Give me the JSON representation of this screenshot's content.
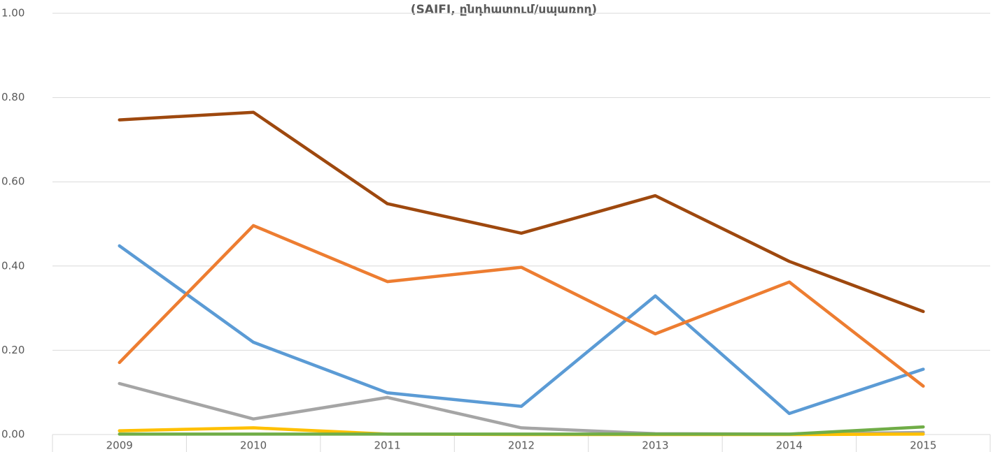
{
  "chart_data": {
    "type": "line",
    "title": "(SAIFI, ընդհատում/սպառող)",
    "categories": [
      "2009",
      "2010",
      "2011",
      "2012",
      "2013",
      "2014",
      "2015"
    ],
    "series": [
      {
        "color": "#5b9bd5",
        "values": [
          0.448,
          0.219,
          0.099,
          0.067,
          0.329,
          0.05,
          0.155
        ]
      },
      {
        "color": "#ed7d31",
        "values": [
          0.171,
          0.496,
          0.363,
          0.397,
          0.239,
          0.362,
          0.115
        ]
      },
      {
        "color": "#a5a5a5",
        "values": [
          0.121,
          0.037,
          0.088,
          0.016,
          0.002,
          0.001,
          0.005
        ]
      },
      {
        "color": "#ffc000",
        "values": [
          0.009,
          0.016,
          0.001,
          0.0,
          0.0,
          0.0,
          0.001
        ]
      },
      {
        "color": "#9e480e",
        "values": [
          0.747,
          0.765,
          0.548,
          0.478,
          0.567,
          0.411,
          0.292
        ]
      },
      {
        "color": "#70ad47",
        "values": [
          0.001,
          0.001,
          0.001,
          0.001,
          0.001,
          0.001,
          0.018
        ]
      }
    ],
    "ylim": [
      0,
      1
    ],
    "yticks": [
      {
        "value": 0,
        "label": "0.00"
      },
      {
        "value": 0.2,
        "label": "0.20"
      },
      {
        "value": 0.4,
        "label": "0.40"
      },
      {
        "value": 0.6,
        "label": "0.60"
      },
      {
        "value": 0.8,
        "label": "0.80"
      },
      {
        "value": 1,
        "label": "1.00"
      }
    ],
    "grid": true
  }
}
